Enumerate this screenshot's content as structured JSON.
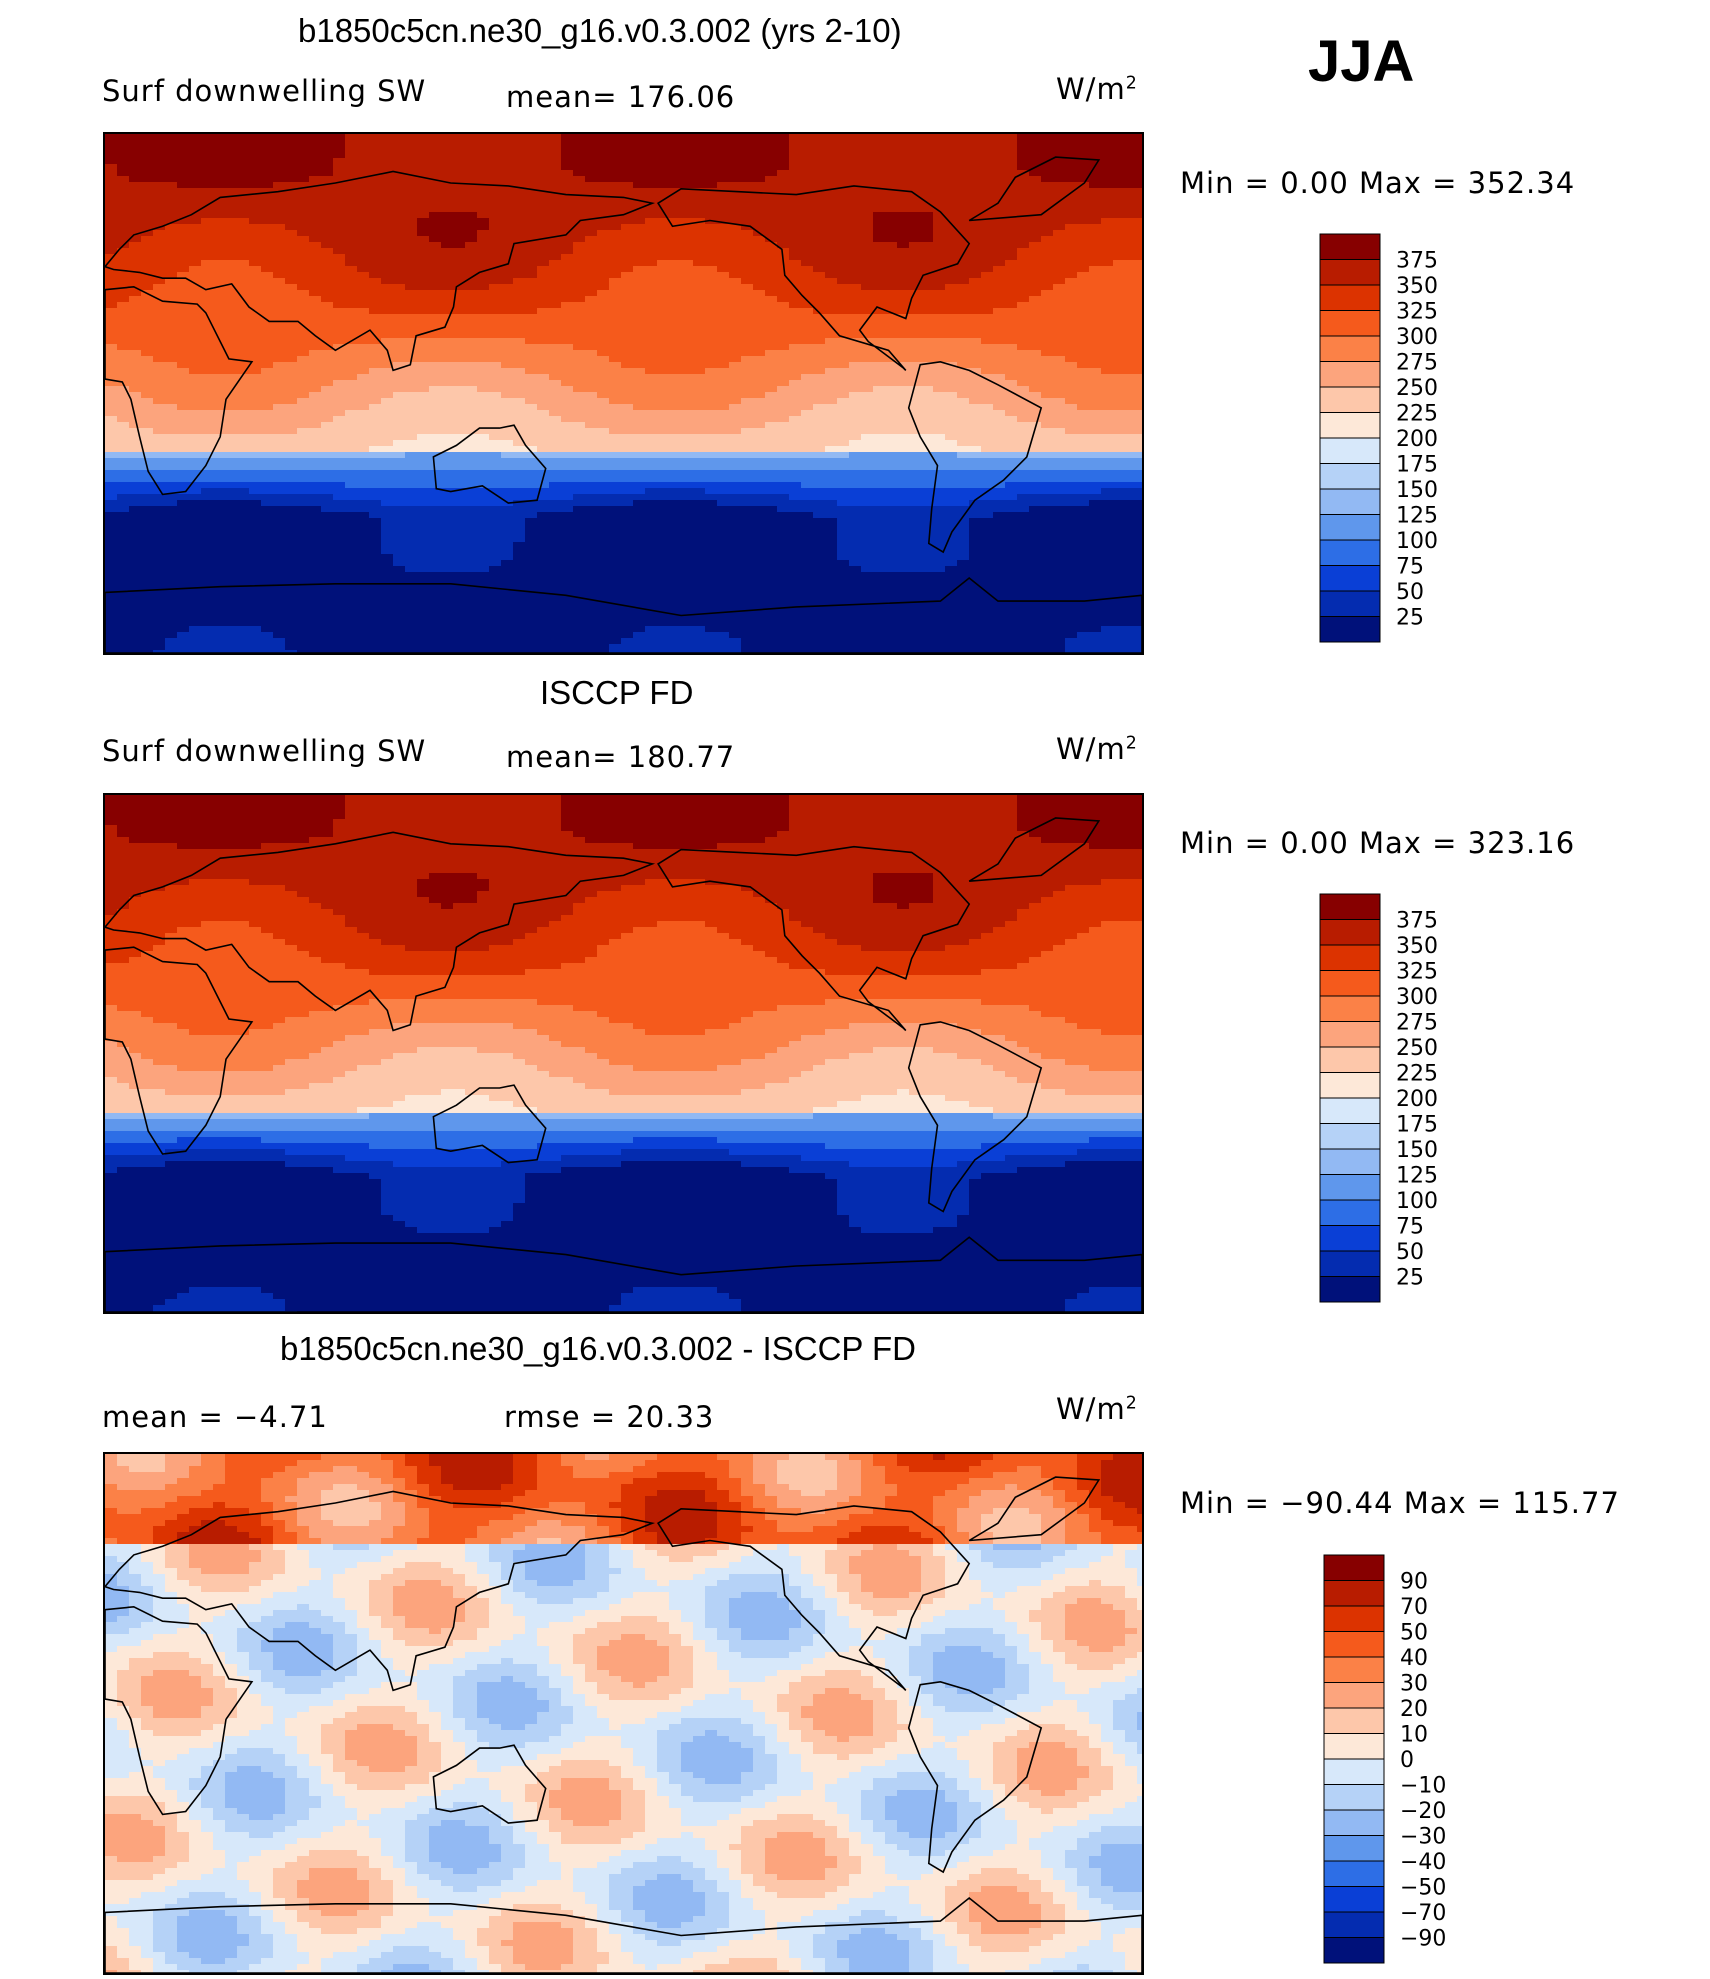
{
  "season": "JJA",
  "panels": [
    {
      "title": "b1850c5cn.ne30_g16.v0.3.002 (yrs 2-10)",
      "left_label": "Surf  downwelling SW",
      "stat_label": "mean=  176.06",
      "units": "W/m",
      "units_exp": "2",
      "minmax": "Min  =      0.00  Max  =  352.34",
      "colorbar_levels": [
        "375",
        "350",
        "325",
        "300",
        "275",
        "250",
        "225",
        "200",
        "175",
        "150",
        "125",
        "100",
        "75",
        "50",
        "25"
      ],
      "colorbar_colors": [
        "#870000",
        "#b81c00",
        "#dc3300",
        "#f55a1c",
        "#fb8147",
        "#fca47d",
        "#fdc7aa",
        "#fde8d8",
        "#d7e8fa",
        "#b5d2f7",
        "#92b9f3",
        "#5f97ec",
        "#2d6ee6",
        "#0a3fd6",
        "#042cb0",
        "#00117a"
      ]
    },
    {
      "title": "ISCCP FD",
      "left_label": "Surf  downwelling SW",
      "stat_label": "mean=  180.77",
      "units": "W/m",
      "units_exp": "2",
      "minmax": "Min  =      0.00  Max  =  323.16",
      "colorbar_levels": [
        "375",
        "350",
        "325",
        "300",
        "275",
        "250",
        "225",
        "200",
        "175",
        "150",
        "125",
        "100",
        "75",
        "50",
        "25"
      ],
      "colorbar_colors": [
        "#870000",
        "#b81c00",
        "#dc3300",
        "#f55a1c",
        "#fb8147",
        "#fca47d",
        "#fdc7aa",
        "#fde8d8",
        "#d7e8fa",
        "#b5d2f7",
        "#92b9f3",
        "#5f97ec",
        "#2d6ee6",
        "#0a3fd6",
        "#042cb0",
        "#00117a"
      ]
    },
    {
      "title": "b1850c5cn.ne30_g16.v0.3.002 - ISCCP FD",
      "left_label": "mean  =    −4.71",
      "stat_label": "rmse  =    20.33",
      "units": "W/m",
      "units_exp": "2",
      "minmax": "Min  = −90.44  Max  =  115.77",
      "colorbar_levels": [
        "90",
        "70",
        "50",
        "40",
        "30",
        "20",
        "10",
        "0",
        "−10",
        "−20",
        "−30",
        "−40",
        "−50",
        "−70",
        "−90"
      ],
      "colorbar_colors": [
        "#870000",
        "#b81c00",
        "#dc3300",
        "#f55a1c",
        "#fb8147",
        "#fca47d",
        "#fdc7aa",
        "#fde8d8",
        "#d7e8fa",
        "#b5d2f7",
        "#92b9f3",
        "#5f97ec",
        "#2d6ee6",
        "#0a3fd6",
        "#042cb0",
        "#00117a"
      ]
    }
  ],
  "chart_data": [
    {
      "type": "heatmap",
      "title": "b1850c5cn.ne30_g16.v0.3.002 (yrs 2-10)",
      "variable": "Surf  downwelling SW",
      "units": "W/m2",
      "mean": 176.06,
      "min": 0.0,
      "max": 352.34,
      "levels": [
        25,
        50,
        75,
        100,
        125,
        150,
        175,
        200,
        225,
        250,
        275,
        300,
        325,
        350,
        375
      ]
    },
    {
      "type": "heatmap",
      "title": "ISCCP FD",
      "variable": "Surf  downwelling SW",
      "units": "W/m2",
      "mean": 180.77,
      "min": 0.0,
      "max": 323.16,
      "levels": [
        25,
        50,
        75,
        100,
        125,
        150,
        175,
        200,
        225,
        250,
        275,
        300,
        325,
        350,
        375
      ]
    },
    {
      "type": "heatmap",
      "title": "b1850c5cn.ne30_g16.v0.3.002 - ISCCP FD",
      "units": "W/m2",
      "mean": -4.71,
      "rmse": 20.33,
      "min": -90.44,
      "max": 115.77,
      "levels": [
        -90,
        -70,
        -50,
        -40,
        -30,
        -20,
        -10,
        0,
        10,
        20,
        30,
        40,
        50,
        70,
        90
      ]
    }
  ]
}
